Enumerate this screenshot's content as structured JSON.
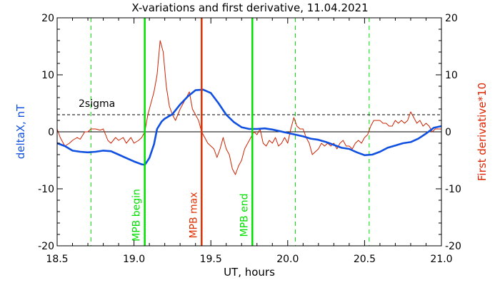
{
  "chart_data": {
    "type": "line",
    "title": "X-variations and first derivative, 11.04.2021",
    "xlabel": "UT, hours",
    "ylabel_left": "deltaX, nT",
    "ylabel_right": "First derivative*10",
    "xlim": [
      18.5,
      21.0
    ],
    "ylim": [
      -20,
      20
    ],
    "x_ticks": [
      "18.5",
      "19.0",
      "19.5",
      "20.0",
      "20.5",
      "21.0"
    ],
    "y_ticks": [
      "20",
      "10",
      "0",
      "-10",
      "-20"
    ],
    "threshold": {
      "label": "2sigma",
      "value": 3.0
    },
    "markers": [
      {
        "label": "MPB begin",
        "x": 19.07,
        "color": "#00e000"
      },
      {
        "label": "MPB max",
        "x": 19.44,
        "color": "#e03000"
      },
      {
        "label": "MPB end",
        "x": 19.77,
        "color": "#00e000"
      }
    ],
    "dashed_lines_x": [
      18.72,
      20.05,
      20.53
    ],
    "series": [
      {
        "axis": "left",
        "color": "#1050e0",
        "x": [
          18.5,
          18.55,
          18.6,
          18.65,
          18.7,
          18.75,
          18.8,
          18.85,
          18.9,
          18.95,
          19.0,
          19.05,
          19.07,
          19.1,
          19.13,
          19.15,
          19.18,
          19.2,
          19.25,
          19.3,
          19.35,
          19.4,
          19.45,
          19.5,
          19.55,
          19.6,
          19.65,
          19.7,
          19.75,
          19.8,
          19.85,
          19.9,
          19.95,
          20.0,
          20.05,
          20.1,
          20.15,
          20.2,
          20.25,
          20.3,
          20.35,
          20.4,
          20.45,
          20.5,
          20.55,
          20.6,
          20.65,
          20.7,
          20.75,
          20.8,
          20.85,
          20.9,
          20.95,
          21.0
        ],
        "values": [
          -2.0,
          -2.5,
          -3.3,
          -3.5,
          -3.6,
          -3.5,
          -3.3,
          -3.4,
          -4.0,
          -4.6,
          -5.2,
          -5.7,
          -5.8,
          -4.6,
          -2.2,
          0.5,
          1.8,
          2.3,
          3.1,
          4.8,
          6.2,
          7.3,
          7.4,
          6.8,
          5.0,
          3.0,
          1.7,
          0.8,
          0.5,
          0.5,
          0.6,
          0.4,
          0.1,
          -0.2,
          -0.5,
          -0.8,
          -1.2,
          -1.4,
          -1.8,
          -2.3,
          -2.8,
          -3.0,
          -3.6,
          -4.1,
          -4.0,
          -3.5,
          -2.8,
          -2.4,
          -2.0,
          -1.8,
          -1.2,
          -0.3,
          0.7,
          1.0
        ]
      },
      {
        "axis": "right",
        "color": "#cc2200",
        "x": [
          18.5,
          18.52,
          18.55,
          18.58,
          18.6,
          18.63,
          18.65,
          18.68,
          18.7,
          18.72,
          18.75,
          18.78,
          18.8,
          18.83,
          18.85,
          18.88,
          18.9,
          18.93,
          18.95,
          18.98,
          19.0,
          19.03,
          19.05,
          19.07,
          19.09,
          19.11,
          19.13,
          19.15,
          19.17,
          19.19,
          19.21,
          19.23,
          19.25,
          19.27,
          19.3,
          19.32,
          19.34,
          19.36,
          19.38,
          19.4,
          19.42,
          19.44,
          19.46,
          19.48,
          19.5,
          19.52,
          19.54,
          19.56,
          19.58,
          19.6,
          19.62,
          19.64,
          19.66,
          19.68,
          19.7,
          19.72,
          19.74,
          19.76,
          19.78,
          19.8,
          19.82,
          19.84,
          19.86,
          19.88,
          19.9,
          19.92,
          19.94,
          19.96,
          19.98,
          20.0,
          20.02,
          20.04,
          20.06,
          20.08,
          20.1,
          20.12,
          20.14,
          20.16,
          20.18,
          20.2,
          20.22,
          20.24,
          20.26,
          20.28,
          20.3,
          20.32,
          20.34,
          20.36,
          20.38,
          20.4,
          20.42,
          20.44,
          20.46,
          20.48,
          20.5,
          20.52,
          20.54,
          20.56,
          20.58,
          20.6,
          20.62,
          20.64,
          20.66,
          20.68,
          20.7,
          20.72,
          20.74,
          20.76,
          20.78,
          20.8,
          20.82,
          20.84,
          20.86,
          20.88,
          20.9,
          20.92,
          20.94,
          20.96,
          20.98,
          21.0
        ],
        "values": [
          0.5,
          -1.0,
          -2.5,
          -2.0,
          -1.5,
          -1.0,
          -1.3,
          0.0,
          0.0,
          0.5,
          0.5,
          0.3,
          0.5,
          -1.5,
          -2.0,
          -1.0,
          -1.5,
          -1.0,
          -2.0,
          -1.0,
          -2.0,
          -1.5,
          -1.0,
          0.0,
          3.0,
          5.0,
          7.0,
          10.0,
          16.0,
          14.0,
          8.0,
          4.5,
          3.0,
          2.0,
          4.0,
          5.0,
          6.0,
          7.0,
          4.0,
          3.0,
          2.0,
          0.0,
          -1.0,
          -2.0,
          -2.5,
          -3.0,
          -4.5,
          -3.0,
          -1.0,
          -3.0,
          -4.0,
          -6.5,
          -7.5,
          -6.0,
          -5.0,
          -3.0,
          -2.0,
          -1.0,
          0.0,
          -0.5,
          0.5,
          -2.0,
          -2.5,
          -1.5,
          -2.0,
          -1.0,
          -2.5,
          -2.0,
          -1.0,
          -2.0,
          0.5,
          2.5,
          1.0,
          0.5,
          0.5,
          -1.0,
          -2.0,
          -4.0,
          -3.5,
          -3.0,
          -2.0,
          -2.5,
          -2.0,
          -2.5,
          -2.0,
          -3.0,
          -2.0,
          -1.5,
          -2.5,
          -2.5,
          -3.0,
          -2.0,
          -1.5,
          -2.0,
          -1.0,
          -0.5,
          1.0,
          2.0,
          2.0,
          2.0,
          1.5,
          1.5,
          1.0,
          1.0,
          2.0,
          1.5,
          2.0,
          1.5,
          2.0,
          3.5,
          2.5,
          1.5,
          2.0,
          1.0,
          1.5,
          1.0,
          0.0,
          0.5,
          0.5,
          0.5
        ]
      }
    ]
  }
}
